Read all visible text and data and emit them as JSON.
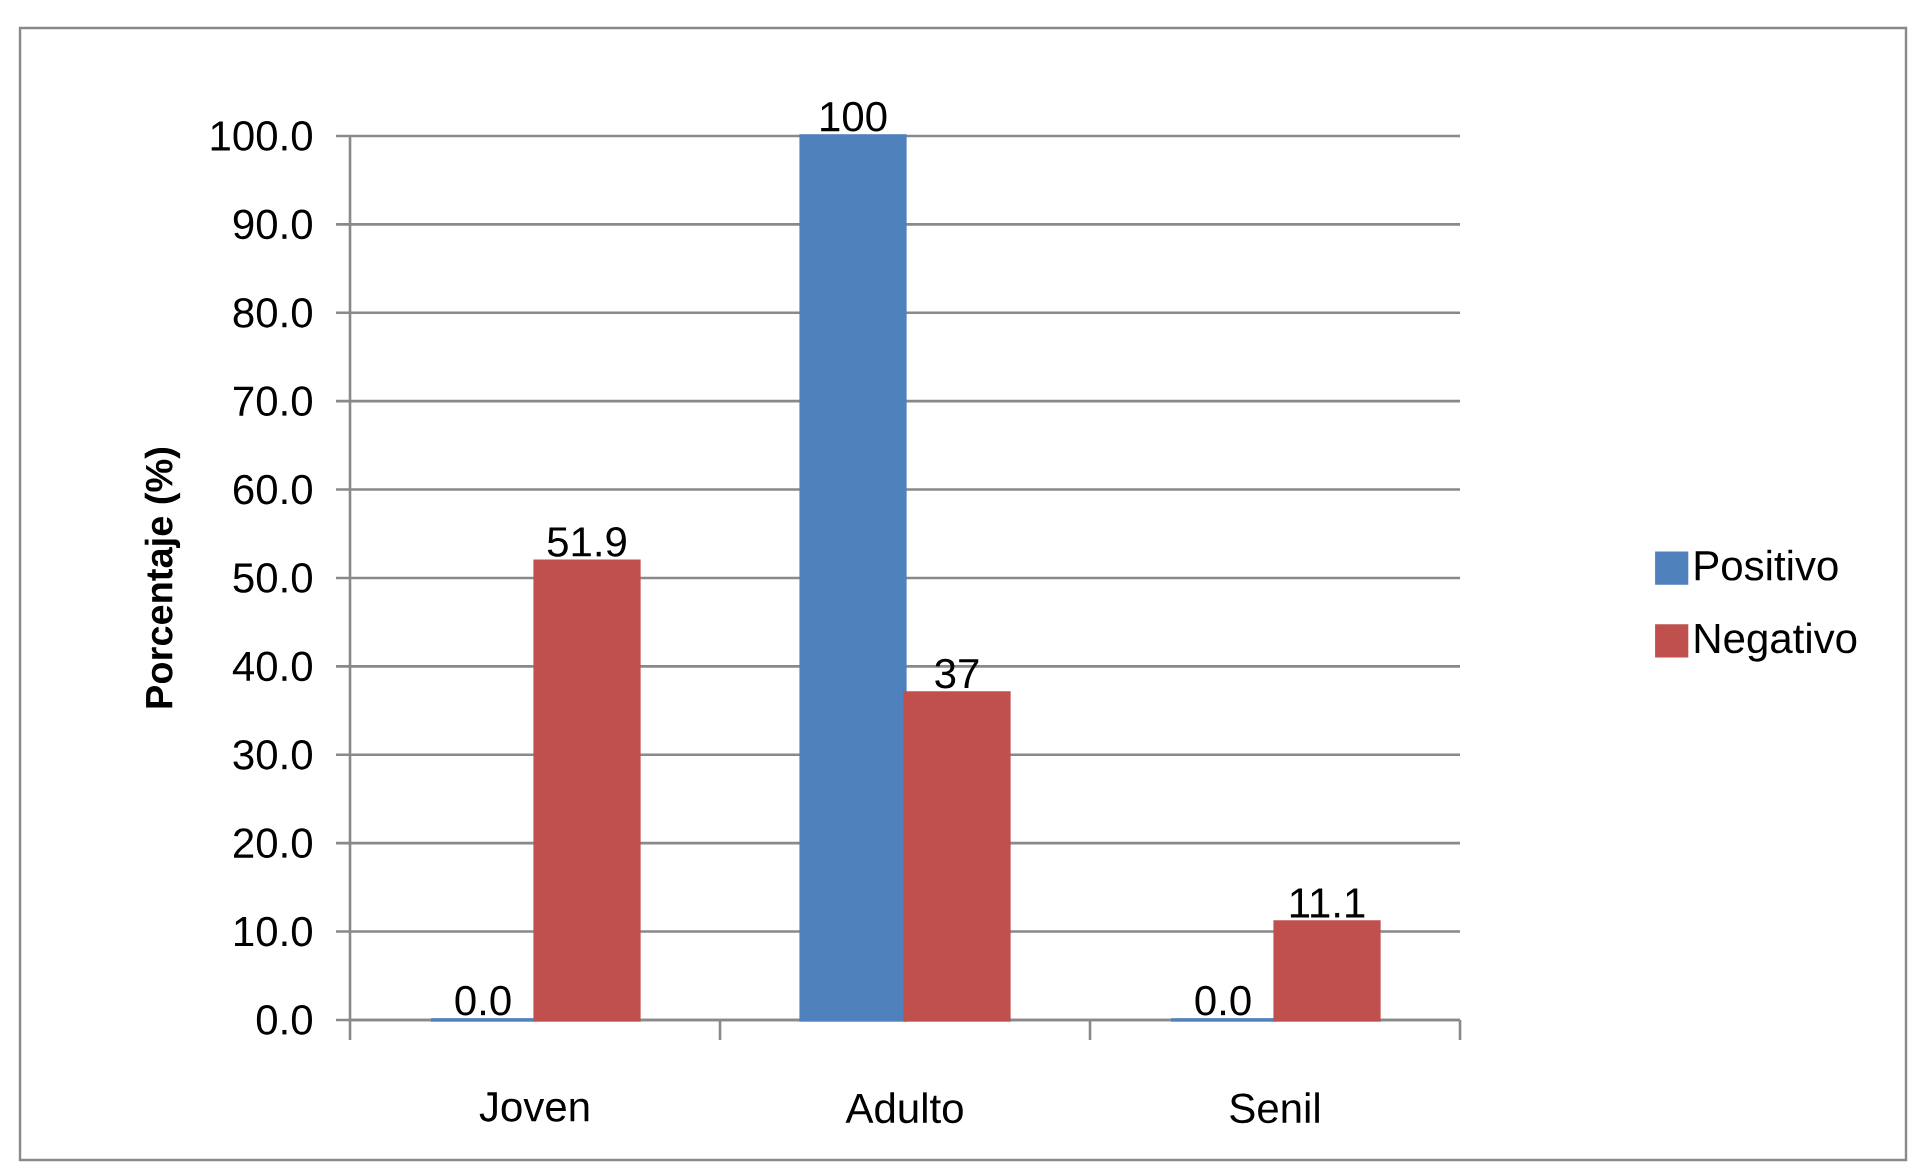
{
  "chart_data": {
    "type": "bar",
    "ylabel": "Porcentaje (%)",
    "categories": [
      "Joven",
      "Adulto",
      "Senil"
    ],
    "series": [
      {
        "name": "Positivo",
        "color": "#4f81bd",
        "values": [
          0,
          100,
          0
        ],
        "value_labels": [
          "0.0",
          "100",
          "0.0"
        ]
      },
      {
        "name": "Negativo",
        "color": "#c0504d",
        "values": [
          51.9,
          37,
          11.1
        ],
        "value_labels": [
          "51.9",
          "37",
          "11.1"
        ]
      }
    ],
    "ylim": [
      0,
      100
    ],
    "yticks": [
      {
        "value": 0,
        "label": "0.0"
      },
      {
        "value": 10,
        "label": "10.0"
      },
      {
        "value": 20,
        "label": "20.0"
      },
      {
        "value": 30,
        "label": "30.0"
      },
      {
        "value": 40,
        "label": "40.0"
      },
      {
        "value": 50,
        "label": "50.0"
      },
      {
        "value": 60,
        "label": "60.0"
      },
      {
        "value": 70,
        "label": "70.0"
      },
      {
        "value": 80,
        "label": "80.0"
      },
      {
        "value": 90,
        "label": "90.0"
      },
      {
        "value": 100,
        "label": "100.0"
      }
    ],
    "grid": "y",
    "legend": "right"
  }
}
